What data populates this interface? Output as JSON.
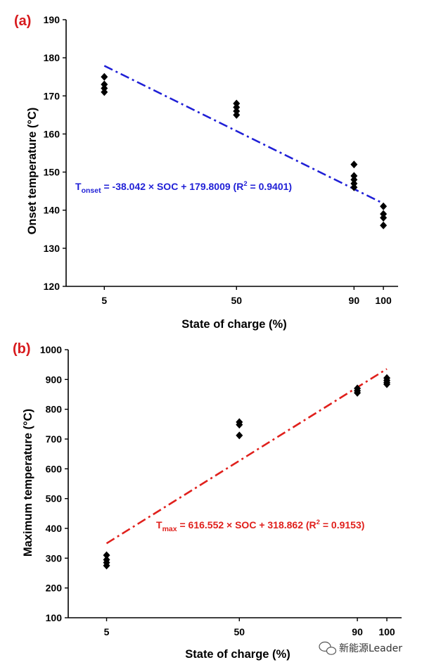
{
  "chart_data": [
    {
      "type": "scatter",
      "panel_label": "(a)",
      "panel_label_color": "#d7191c",
      "xlabel": "State of charge (%)",
      "ylabel": "Onset temperature (°C)",
      "xticks": [
        5,
        50,
        90,
        100
      ],
      "yticks": [
        120,
        130,
        140,
        150,
        160,
        170,
        180,
        190
      ],
      "xlim": [
        -8,
        105
      ],
      "ylim": [
        120,
        190
      ],
      "series": [
        {
          "marker": "diamond",
          "color": "#000000",
          "x": [
            5,
            5,
            5,
            5,
            50,
            50,
            50,
            50,
            90,
            90,
            90,
            90,
            90,
            100,
            100,
            100,
            100
          ],
          "y": [
            175,
            173,
            172,
            171,
            168,
            167,
            166,
            165,
            152,
            149,
            148,
            147,
            146,
            141,
            139,
            138,
            136
          ]
        }
      ],
      "fit": {
        "slope": -38.042,
        "intercept": 179.8009,
        "x_range": [
          5,
          100
        ],
        "style": "dash-dot",
        "color": "#1f1fd6",
        "label": {
          "prefix": "T",
          "sub": "onset",
          "mid": " = -38.042 × SOC + 179.8009 (R",
          "sup": "2",
          "suffix": " = 0.9401)"
        }
      }
    },
    {
      "type": "scatter",
      "panel_label": "(b)",
      "panel_label_color": "#d7191c",
      "xlabel": "State of charge (%)",
      "ylabel": "Maximum temperature (°C)",
      "xticks": [
        5,
        50,
        90,
        100
      ],
      "yticks": [
        100,
        200,
        300,
        400,
        500,
        600,
        700,
        800,
        900,
        1000
      ],
      "xlim": [
        -8,
        105
      ],
      "ylim": [
        100,
        1000
      ],
      "series": [
        {
          "marker": "diamond",
          "color": "#000000",
          "x": [
            5,
            5,
            5,
            5,
            50,
            50,
            50,
            90,
            90,
            90,
            100,
            100,
            100,
            100
          ],
          "y": [
            310,
            295,
            285,
            275,
            757,
            748,
            712,
            870,
            862,
            855,
            905,
            897,
            890,
            884
          ]
        }
      ],
      "fit": {
        "slope": 616.552,
        "intercept": 318.862,
        "x_range": [
          5,
          100
        ],
        "style": "dash-dot",
        "color": "#e0201c",
        "label": {
          "prefix": "T",
          "sub": "max",
          "mid": " = 616.552 × SOC + 318.862 (R",
          "sup": "2",
          "suffix": " = 0.9153)"
        }
      }
    }
  ],
  "watermark": {
    "icon": "wechat-icon",
    "text": "新能源Leader"
  }
}
